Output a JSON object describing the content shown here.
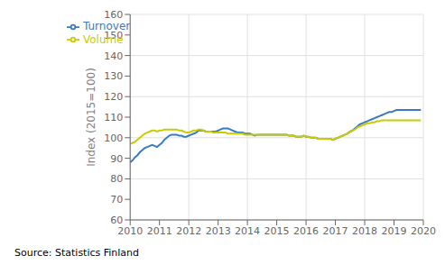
{
  "chart_data": {
    "type": "line",
    "ylabel": "Index (2015=100)",
    "annotations": [
      "Source: Statistics Finland"
    ],
    "x": [
      2010.0,
      2010.083333,
      2010.166667,
      2010.25,
      2010.333333,
      2010.416667,
      2010.5,
      2010.583333,
      2010.666667,
      2010.75,
      2010.833333,
      2010.916667,
      2011.0,
      2011.083333,
      2011.166667,
      2011.25,
      2011.333333,
      2011.416667,
      2011.5,
      2011.583333,
      2011.666667,
      2011.75,
      2011.833333,
      2011.916667,
      2012.0,
      2012.083333,
      2012.166667,
      2012.25,
      2012.333333,
      2012.416667,
      2012.5,
      2012.583333,
      2012.666667,
      2012.75,
      2012.833333,
      2012.916667,
      2013.0,
      2013.083333,
      2013.166667,
      2013.25,
      2013.333333,
      2013.416667,
      2013.5,
      2013.583333,
      2013.666667,
      2013.75,
      2013.833333,
      2013.916667,
      2014.0,
      2014.083333,
      2014.166667,
      2014.25,
      2014.333333,
      2014.416667,
      2014.5,
      2014.583333,
      2014.666667,
      2014.75,
      2014.833333,
      2014.916667,
      2015.0,
      2015.083333,
      2015.166667,
      2015.25,
      2015.333333,
      2015.416667,
      2015.5,
      2015.583333,
      2015.666667,
      2015.75,
      2015.833333,
      2015.916667,
      2016.0,
      2016.083333,
      2016.166667,
      2016.25,
      2016.333333,
      2016.416667,
      2016.5,
      2016.583333,
      2016.666667,
      2016.75,
      2016.833333,
      2016.916667,
      2017.0,
      2017.083333,
      2017.166667,
      2017.25,
      2017.333333,
      2017.416667,
      2017.5,
      2017.583333,
      2017.666667,
      2017.75,
      2017.833333,
      2017.916667,
      2018.0,
      2018.083333,
      2018.166667,
      2018.25,
      2018.333333,
      2018.416667,
      2018.5,
      2018.583333,
      2018.666667,
      2018.75,
      2018.833333,
      2018.916667,
      2019.0,
      2019.083333,
      2019.166667,
      2019.25,
      2019.333333,
      2019.416667,
      2019.5,
      2019.583333,
      2019.666667,
      2019.75,
      2019.833333,
      2019.916667
    ],
    "series": [
      {
        "name": "Turnover",
        "color": "#3a7abf",
        "values": [
          88.0,
          89.0,
          90.5,
          91.5,
          93.0,
          94.0,
          95.0,
          95.5,
          96.0,
          96.5,
          96.0,
          95.5,
          96.5,
          97.5,
          99.0,
          100.0,
          101.0,
          101.5,
          101.5,
          101.5,
          101.0,
          101.0,
          100.5,
          100.5,
          101.0,
          101.5,
          102.0,
          102.5,
          103.5,
          103.5,
          103.5,
          103.0,
          103.0,
          103.0,
          103.0,
          103.0,
          103.5,
          104.0,
          104.5,
          104.5,
          104.5,
          104.0,
          103.5,
          103.0,
          102.5,
          102.5,
          102.5,
          102.0,
          102.0,
          102.0,
          101.5,
          101.0,
          101.5,
          101.5,
          101.5,
          101.5,
          101.5,
          101.5,
          101.5,
          101.5,
          101.5,
          101.5,
          101.5,
          101.5,
          101.5,
          101.0,
          101.0,
          101.0,
          100.5,
          100.5,
          100.5,
          101.0,
          100.5,
          100.5,
          100.0,
          100.0,
          100.0,
          99.5,
          99.5,
          99.5,
          99.5,
          99.5,
          99.5,
          99.0,
          99.5,
          100.0,
          100.5,
          101.0,
          101.5,
          102.0,
          103.0,
          103.5,
          104.5,
          105.5,
          106.5,
          107.0,
          107.5,
          108.0,
          108.5,
          109.0,
          109.5,
          110.0,
          110.5,
          111.0,
          111.5,
          112.0,
          112.5,
          112.5,
          113.0,
          113.5,
          113.5,
          113.5,
          113.5,
          113.5,
          113.5,
          113.5,
          113.5,
          113.5,
          113.5,
          113.5
        ]
      },
      {
        "name": "Volume",
        "color": "#c8cc00",
        "values": [
          97.0,
          97.5,
          98.0,
          99.0,
          100.0,
          101.0,
          102.0,
          102.5,
          103.0,
          103.5,
          103.5,
          103.0,
          103.5,
          103.5,
          104.0,
          104.0,
          104.0,
          104.0,
          104.0,
          104.0,
          103.5,
          103.5,
          103.0,
          102.5,
          102.5,
          103.0,
          103.5,
          103.5,
          104.0,
          104.0,
          103.5,
          103.0,
          103.0,
          103.0,
          102.5,
          102.5,
          102.5,
          102.5,
          102.5,
          102.5,
          102.0,
          102.0,
          102.0,
          102.0,
          102.0,
          102.0,
          102.0,
          101.5,
          101.5,
          101.5,
          101.5,
          101.5,
          101.5,
          101.5,
          101.5,
          101.5,
          101.5,
          101.5,
          101.5,
          101.5,
          101.5,
          101.5,
          101.5,
          101.5,
          101.5,
          101.0,
          101.0,
          101.0,
          100.5,
          100.5,
          100.5,
          101.0,
          100.5,
          100.5,
          100.0,
          100.0,
          100.0,
          99.5,
          99.5,
          99.5,
          99.5,
          99.5,
          99.5,
          99.0,
          99.5,
          100.0,
          100.5,
          101.0,
          101.5,
          102.0,
          103.0,
          103.5,
          104.0,
          105.0,
          105.5,
          106.0,
          106.5,
          107.0,
          107.0,
          107.5,
          107.5,
          108.0,
          108.0,
          108.5,
          108.5,
          108.5,
          108.5,
          108.5,
          108.5,
          108.5,
          108.5,
          108.5,
          108.5,
          108.5,
          108.5,
          108.5,
          108.5,
          108.5,
          108.5,
          108.5
        ]
      }
    ],
    "xlim": [
      2010,
      2020
    ],
    "xticks": [
      2010,
      2011,
      2012,
      2013,
      2014,
      2015,
      2016,
      2017,
      2018,
      2019,
      2020
    ],
    "ylim": [
      60,
      160
    ],
    "yticks": [
      60,
      70,
      80,
      90,
      100,
      110,
      120,
      130,
      140,
      150,
      160
    ],
    "grid": true,
    "legend": "upper left"
  }
}
